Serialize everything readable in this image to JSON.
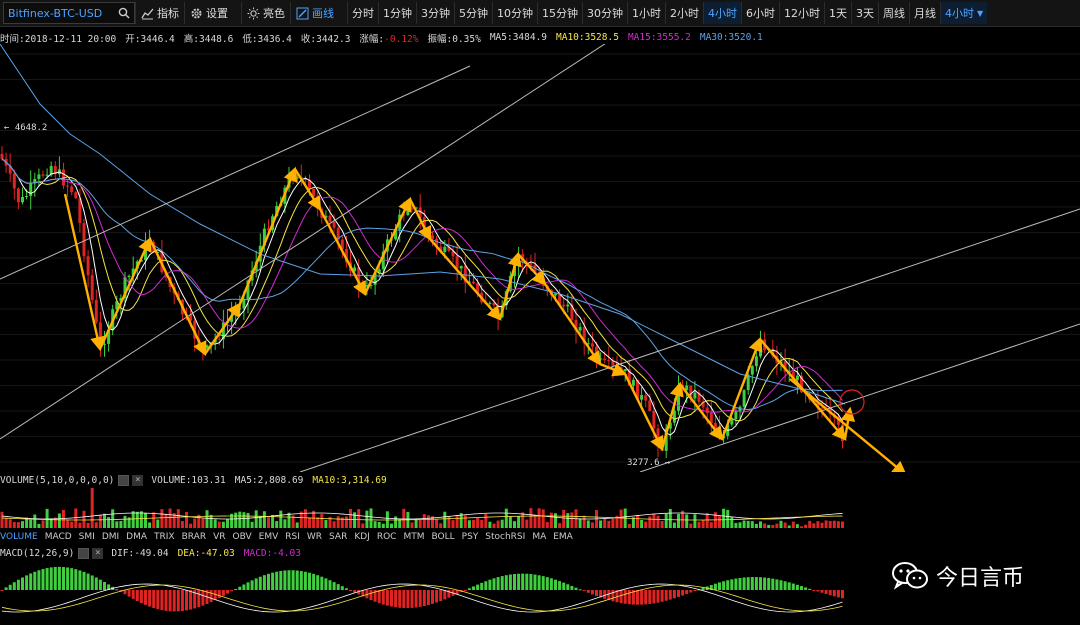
{
  "toolbar": {
    "symbol": "Bitfinex-BTC-USD",
    "indicators_label": "指标",
    "settings_label": "设置",
    "theme_label": "亮色",
    "draw_label": "画线",
    "timeframes": [
      "分时",
      "1分钟",
      "3分钟",
      "5分钟",
      "10分钟",
      "15分钟",
      "30分钟",
      "1小时",
      "2小时",
      "4小时",
      "6小时",
      "12小时",
      "1天",
      "3天",
      "周线",
      "月线"
    ],
    "active_timeframe": "4小时",
    "timeframe_dropdown": "4小时"
  },
  "info": {
    "time": "时间:2018-12-11 20:00",
    "open": "开:3446.4",
    "high": "高:3448.6",
    "low": "低:3436.4",
    "close": "收:3442.3",
    "change_label": "涨幅:",
    "change_value": "-0.12%",
    "amplitude": "振幅:0.35%",
    "ma5": "MA5:3484.9",
    "ma10": "MA10:3528.5",
    "ma15": "MA15:3555.2",
    "ma30": "MA30:3520.1"
  },
  "annotations": {
    "high_price": "← 4648.2",
    "low_price": "3277.6 →"
  },
  "volume": {
    "title": "VOLUME(5,10,0,0,0,0)",
    "volume": "VOLUME:103.31",
    "ma5": "MA5:2,808.69",
    "ma10": "MA10:3,314.69"
  },
  "indicator_tabs": [
    "VOLUME",
    "MACD",
    "SMI",
    "DMI",
    "DMA",
    "TRIX",
    "BRAR",
    "VR",
    "OBV",
    "EMV",
    "RSI",
    "WR",
    "SAR",
    "KDJ",
    "ROC",
    "MTM",
    "BOLL",
    "PSY",
    "StochRSI",
    "MA",
    "EMA"
  ],
  "active_indicator": "VOLUME",
  "macd": {
    "title": "MACD(12,26,9)",
    "dif": "DIF:-49.04",
    "dea": "DEA:-47.03",
    "macd": "MACD:-4.03"
  },
  "watermark": "今日言币",
  "colors": {
    "up": "#3fcf3f",
    "down": "#e02424",
    "ma5": "#ffffff",
    "ma10": "#f5e642",
    "ma15": "#d12ad1",
    "ma30": "#5ba3e6",
    "accent": "#4da3ff",
    "arrow": "#ffb000"
  },
  "icons": {
    "search": "search-icon",
    "indicators": "indicators-icon",
    "settings": "gear-icon",
    "theme": "sun-icon",
    "draw": "pencil-icon",
    "watermark": "wechat-icon"
  }
}
